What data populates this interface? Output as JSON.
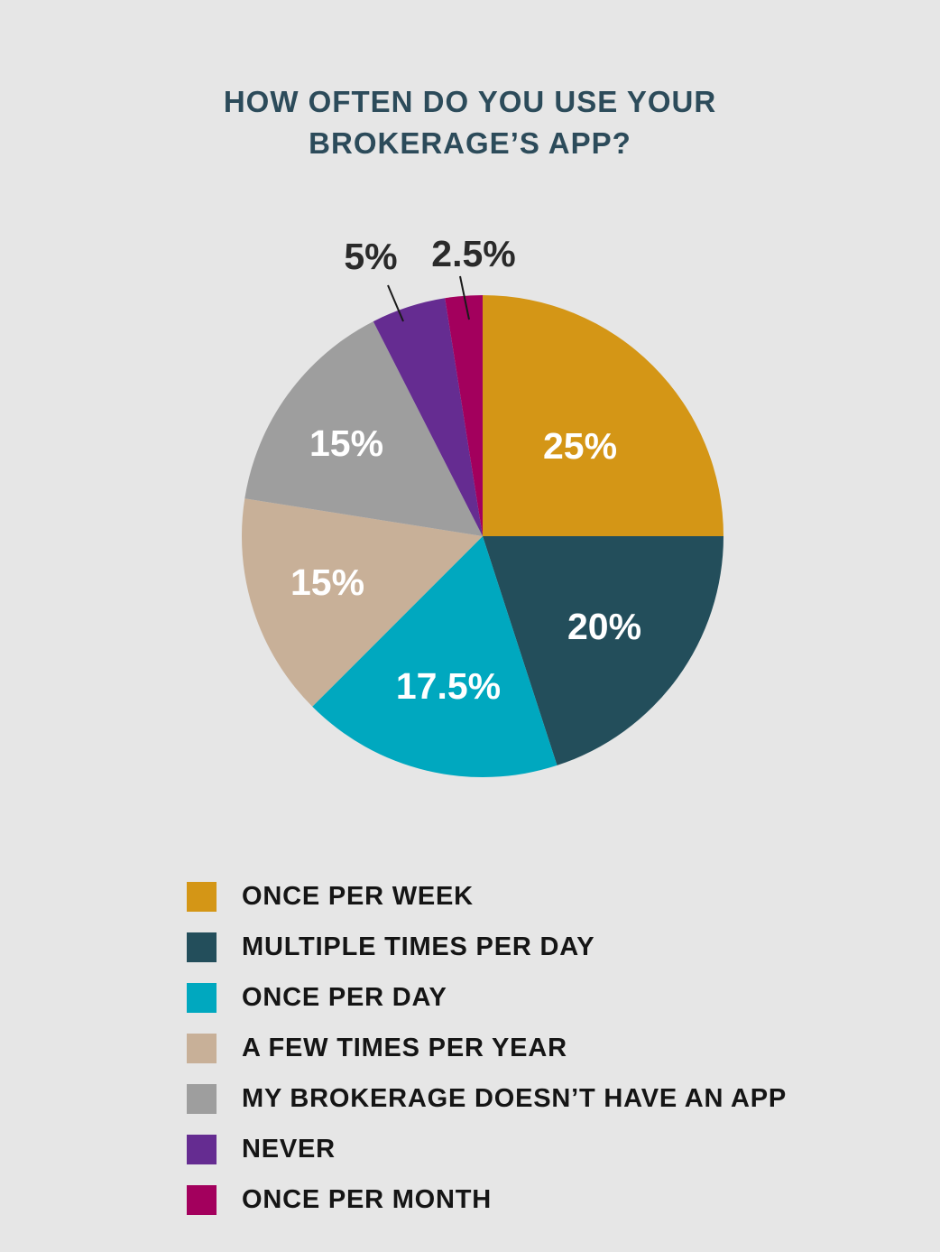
{
  "chart_data": {
    "type": "pie",
    "title_lines": [
      "HOW OFTEN DO YOU USE YOUR",
      "BROKERAGE’S APP?"
    ],
    "start_angle": "12 o'clock, clockwise",
    "slices": [
      {
        "label": "ONCE PER WEEK",
        "value": 25,
        "value_label": "25%",
        "color": "#d49616",
        "label_color": "#ffffff",
        "label_placement": "inside"
      },
      {
        "label": "MULTIPLE TIMES PER DAY",
        "value": 20,
        "value_label": "20%",
        "color": "#234e5b",
        "label_color": "#ffffff",
        "label_placement": "inside"
      },
      {
        "label": "ONCE PER DAY",
        "value": 17.5,
        "value_label": "17.5%",
        "color": "#00a8bf",
        "label_color": "#ffffff",
        "label_placement": "inside"
      },
      {
        "label": "A FEW TIMES PER YEAR",
        "value": 15,
        "value_label": "15%",
        "color": "#c8b098",
        "label_color": "#ffffff",
        "label_placement": "inside"
      },
      {
        "label": "MY BROKERAGE DOESN’T HAVE AN APP",
        "value": 15,
        "value_label": "15%",
        "color": "#9e9e9e",
        "label_color": "#ffffff",
        "label_placement": "inside"
      },
      {
        "label": "NEVER",
        "value": 5,
        "value_label": "5%",
        "color": "#652c91",
        "label_color": "#2a2a2a",
        "label_placement": "outside"
      },
      {
        "label": "ONCE PER MONTH",
        "value": 2.5,
        "value_label": "2.5%",
        "color": "#a3005d",
        "label_color": "#2a2a2a",
        "label_placement": "outside"
      }
    ],
    "legend_position": "bottom"
  }
}
